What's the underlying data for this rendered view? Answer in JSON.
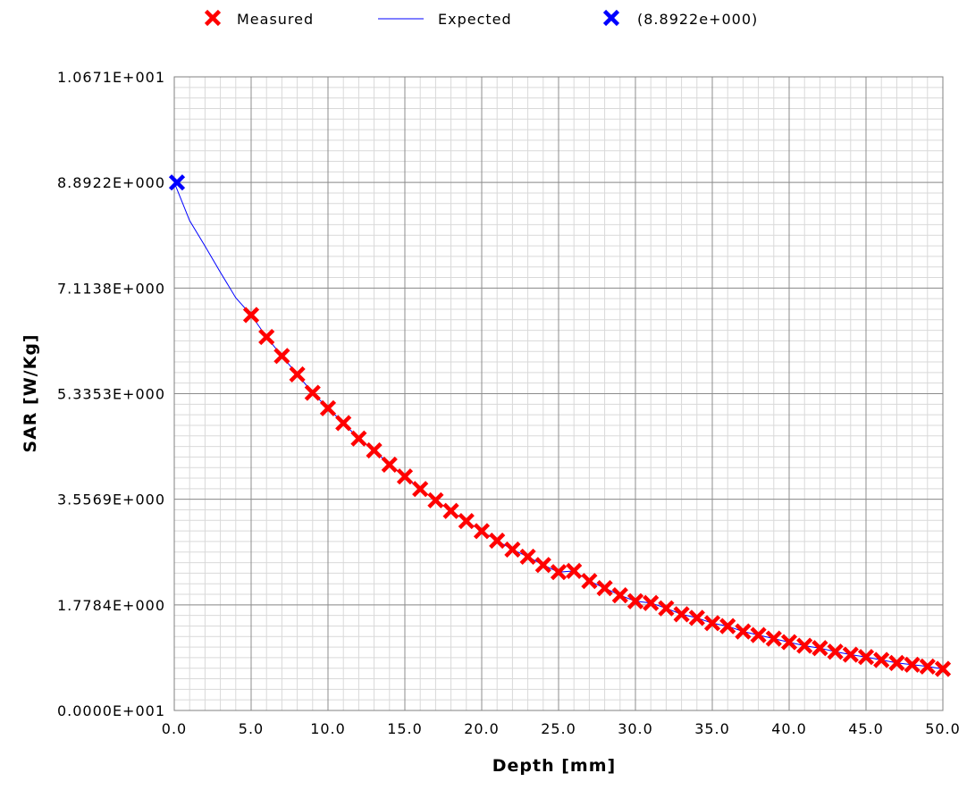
{
  "chart_data": {
    "type": "scatter",
    "xlabel": "Depth [mm]",
    "ylabel": "SAR [W/Kg]",
    "xlim": [
      0,
      50
    ],
    "ylim": [
      0,
      10.671
    ],
    "grid": true,
    "legend_position": "top-center",
    "x_tick_labels": [
      "0.0",
      "5.0",
      "10.0",
      "15.0",
      "20.0",
      "25.0",
      "30.0",
      "35.0",
      "40.0",
      "45.0",
      "50.0"
    ],
    "y_tick_labels": [
      "0.0000E+001",
      "1.7784E+000",
      "3.5569E+000",
      "5.3353E+000",
      "7.1138E+000",
      "8.8922E+000",
      "1.0671E+001"
    ],
    "legend": [
      {
        "label": "Measured",
        "marker": "x",
        "color": "#ff0000"
      },
      {
        "label": "Expected",
        "marker": "line",
        "color": "#0000ff"
      },
      {
        "label": "(8.8922e+000)",
        "marker": "x",
        "color": "#0000ff"
      }
    ],
    "series": [
      {
        "name": "Measured",
        "type": "scatter",
        "color": "#ff0000",
        "x": [
          5,
          6,
          7,
          8,
          9,
          10,
          11,
          12,
          13,
          14,
          15,
          16,
          17,
          18,
          19,
          20,
          21,
          22,
          23,
          24,
          25,
          26,
          27,
          28,
          29,
          30,
          31,
          32,
          33,
          34,
          35,
          36,
          37,
          38,
          39,
          40,
          41,
          42,
          43,
          44,
          45,
          46,
          47,
          48,
          49,
          50
        ],
        "y": [
          6.66,
          6.29,
          5.97,
          5.66,
          5.35,
          5.09,
          4.84,
          4.58,
          4.38,
          4.14,
          3.94,
          3.73,
          3.54,
          3.36,
          3.19,
          3.02,
          2.86,
          2.71,
          2.59,
          2.45,
          2.33,
          2.35,
          2.18,
          2.06,
          1.94,
          1.84,
          1.81,
          1.72,
          1.62,
          1.56,
          1.47,
          1.42,
          1.33,
          1.27,
          1.21,
          1.15,
          1.09,
          1.05,
          0.99,
          0.94,
          0.9,
          0.85,
          0.8,
          0.77,
          0.74,
          0.7
        ]
      },
      {
        "name": "Expected",
        "type": "line",
        "color": "#0000ff",
        "x": [
          0,
          1,
          2,
          3,
          4,
          5,
          6,
          7,
          8,
          9,
          10,
          11,
          12,
          13,
          14,
          15,
          16,
          17,
          18,
          19,
          20,
          21,
          22,
          23,
          24,
          25,
          26,
          27,
          28,
          29,
          30,
          31,
          32,
          33,
          34,
          35,
          36,
          37,
          38,
          39,
          40,
          41,
          42,
          43,
          44,
          45,
          46,
          47,
          48,
          49,
          50
        ],
        "y": [
          8.8922,
          8.25,
          7.82,
          7.38,
          6.95,
          6.66,
          6.29,
          5.97,
          5.66,
          5.35,
          5.09,
          4.84,
          4.58,
          4.38,
          4.14,
          3.94,
          3.73,
          3.54,
          3.36,
          3.19,
          3.02,
          2.86,
          2.71,
          2.59,
          2.45,
          2.33,
          2.35,
          2.18,
          2.06,
          1.94,
          1.84,
          1.81,
          1.72,
          1.62,
          1.56,
          1.47,
          1.42,
          1.33,
          1.27,
          1.21,
          1.15,
          1.09,
          1.05,
          0.99,
          0.94,
          0.9,
          0.85,
          0.8,
          0.77,
          0.74,
          0.7
        ]
      },
      {
        "name": "(8.8922e+000)",
        "type": "scatter",
        "color": "#0000ff",
        "x": [
          0
        ],
        "y": [
          8.8922
        ]
      }
    ]
  }
}
